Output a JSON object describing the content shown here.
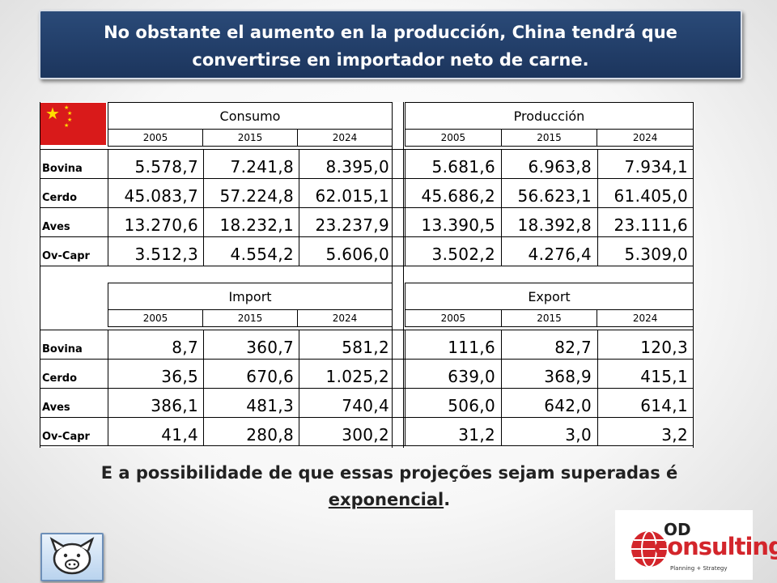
{
  "title": {
    "line1": "No obstante el aumento en la producción, China tendrá que",
    "line2": "convertirse en importador neto de carne."
  },
  "blocks": {
    "consumo": {
      "title": "Consumo",
      "years": [
        "2005",
        "2015",
        "2024"
      ]
    },
    "produccion": {
      "title": "Producción",
      "years": [
        "2005",
        "2015",
        "2024"
      ]
    },
    "import": {
      "title": "Import",
      "years": [
        "2005",
        "2015",
        "2024"
      ]
    },
    "export": {
      "title": "Export",
      "years": [
        "2005",
        "2015",
        "2024"
      ]
    }
  },
  "top_rows": [
    {
      "label": "Bovina",
      "consumo": [
        "5.578,7",
        "7.241,8",
        "8.395,0"
      ],
      "produccion": [
        "5.681,6",
        "6.963,8",
        "7.934,1"
      ]
    },
    {
      "label": "Cerdo",
      "consumo": [
        "45.083,7",
        "57.224,8",
        "62.015,1"
      ],
      "produccion": [
        "45.686,2",
        "56.623,1",
        "61.405,0"
      ]
    },
    {
      "label": "Aves",
      "consumo": [
        "13.270,6",
        "18.232,1",
        "23.237,9"
      ],
      "produccion": [
        "13.390,5",
        "18.392,8",
        "23.111,6"
      ]
    },
    {
      "label": "Ov-Capr",
      "consumo": [
        "3.512,3",
        "4.554,2",
        "5.606,0"
      ],
      "produccion": [
        "3.502,2",
        "4.276,4",
        "5.309,0"
      ]
    }
  ],
  "bottom_rows": [
    {
      "label": "Bovina",
      "import": [
        "8,7",
        "360,7",
        "581,2"
      ],
      "export": [
        "111,6",
        "82,7",
        "120,3"
      ]
    },
    {
      "label": "Cerdo",
      "import": [
        "36,5",
        "670,6",
        "1.025,2"
      ],
      "export": [
        "639,0",
        "368,9",
        "415,1"
      ]
    },
    {
      "label": "Aves",
      "import": [
        "386,1",
        "481,3",
        "740,4"
      ],
      "export": [
        "506,0",
        "642,0",
        "614,1"
      ]
    },
    {
      "label": "Ov-Capr",
      "import": [
        "41,4",
        "280,8",
        "300,2"
      ],
      "export": [
        "31,2",
        "3,0",
        "3,2"
      ]
    }
  ],
  "footer": {
    "before": "E a possibilidade de que essas projeções sejam superadas é",
    "underlined": "exponencial",
    "after": "."
  },
  "logo": {
    "od": "OD",
    "name": "consulting",
    "tagline": "Planning + Strategy"
  },
  "colors": {
    "title_bg": "#1c355d",
    "flag_red": "#d91a1a",
    "flag_star": "#ffde00",
    "brand_red": "#d3252b"
  },
  "icons": [
    "china-flag-icon",
    "pig-logo-icon",
    "globe-logo-icon"
  ]
}
